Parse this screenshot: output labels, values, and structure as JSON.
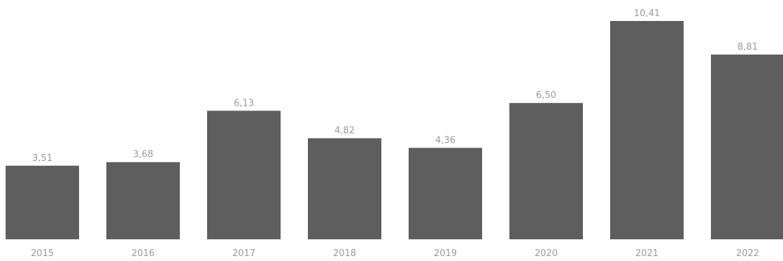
{
  "chart_data": {
    "type": "bar",
    "categories": [
      "2015",
      "2016",
      "2017",
      "2018",
      "2019",
      "2020",
      "2021",
      "2022"
    ],
    "values": [
      3.51,
      3.68,
      6.13,
      4.82,
      4.36,
      6.5,
      10.41,
      8.81
    ],
    "value_labels": [
      "3,51",
      "3,68",
      "6,13",
      "4,82",
      "4,36",
      "6,50",
      "10,41",
      "8,81"
    ],
    "title": "",
    "xlabel": "",
    "ylabel": "",
    "ylim": [
      0,
      10.41
    ],
    "grid": false,
    "bar_color": "#5e5e5e"
  }
}
